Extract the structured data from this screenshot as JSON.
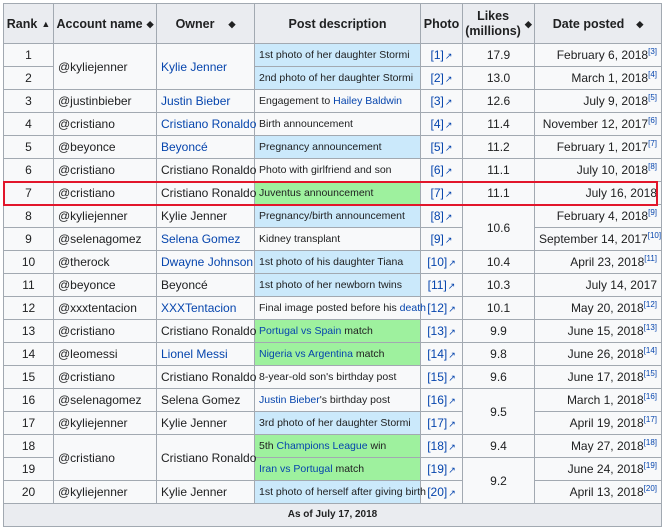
{
  "headers": [
    "Rank",
    "Account name",
    "Owner",
    "Post description",
    "Photo",
    "Likes (millions)",
    "Date posted"
  ],
  "header_likes_line1": "Likes",
  "header_likes_line2": "(millions)",
  "sort_icon": "up-down-triangles",
  "colors": {
    "blue_cell": "#cbe9fb",
    "green_cell": "#9ef19e",
    "highlight": "#e2162b",
    "link": "#0645ad"
  },
  "rows": [
    {
      "rank": "1",
      "account": "@kyliejenner",
      "owner": "Kylie Jenner",
      "owner_link": true,
      "desc_parts": [
        {
          "t": "1st photo of her daughter Stormi"
        }
      ],
      "desc_bg": "blue",
      "photo": "[1]",
      "likes": "17.9",
      "date": "February 6, 2018",
      "ref": "[3]"
    },
    {
      "rank": "2",
      "account": "",
      "owner": "",
      "desc_parts": [
        {
          "t": "2nd photo of her daughter Stormi"
        }
      ],
      "desc_bg": "blue",
      "photo": "[2]",
      "likes": "13.0",
      "date": "March 1, 2018",
      "ref": "[4]"
    },
    {
      "rank": "3",
      "account": "@justinbieber",
      "owner": "Justin Bieber",
      "owner_link": true,
      "desc_parts": [
        {
          "t": "Engagement to "
        },
        {
          "t": "Hailey Baldwin",
          "link": true
        }
      ],
      "desc_bg": "",
      "photo": "[3]",
      "likes": "12.6",
      "date": "July 9, 2018",
      "ref": "[5]"
    },
    {
      "rank": "4",
      "account": "@cristiano",
      "owner": "Cristiano Ronaldo",
      "owner_link": true,
      "desc_parts": [
        {
          "t": "Birth announcement"
        }
      ],
      "desc_bg": "",
      "photo": "[4]",
      "likes": "11.4",
      "date": "November 12, 2017",
      "ref": "[6]"
    },
    {
      "rank": "5",
      "account": "@beyonce",
      "owner": "Beyoncé",
      "owner_link": true,
      "desc_parts": [
        {
          "t": "Pregnancy announcement"
        }
      ],
      "desc_bg": "blue",
      "photo": "[5]",
      "likes": "11.2",
      "date": "February 1, 2017",
      "ref": "[7]"
    },
    {
      "rank": "6",
      "account": "@cristiano",
      "owner": "Cristiano Ronaldo",
      "owner_link": false,
      "desc_parts": [
        {
          "t": "Photo with girlfriend and son"
        }
      ],
      "desc_bg": "",
      "photo": "[6]",
      "likes": "11.1",
      "date": "July 10, 2018",
      "ref": "[8]"
    },
    {
      "rank": "7",
      "account": "@cristiano",
      "owner": "Cristiano Ronaldo",
      "owner_link": false,
      "desc_parts": [
        {
          "t": "Juventus announcement"
        }
      ],
      "desc_bg": "green",
      "photo": "[7]",
      "likes": "11.1",
      "date": "July 16, 2018",
      "ref": ""
    },
    {
      "rank": "8",
      "account": "@kyliejenner",
      "owner": "Kylie Jenner",
      "owner_link": false,
      "desc_parts": [
        {
          "t": "Pregnancy/birth announcement"
        }
      ],
      "desc_bg": "blue",
      "photo": "[8]",
      "likes": "10.6",
      "date": "February 4, 2018",
      "ref": "[9]"
    },
    {
      "rank": "9",
      "account": "@selenagomez",
      "owner": "Selena Gomez",
      "owner_link": true,
      "desc_parts": [
        {
          "t": "Kidney transplant"
        }
      ],
      "desc_bg": "",
      "photo": "[9]",
      "likes": "",
      "date": "September 14, 2017",
      "ref": "[10]"
    },
    {
      "rank": "10",
      "account": "@therock",
      "owner": "Dwayne Johnson",
      "owner_link": true,
      "desc_parts": [
        {
          "t": "1st photo of his daughter Tiana"
        }
      ],
      "desc_bg": "blue",
      "photo": "[10]",
      "likes": "10.4",
      "date": "April 23, 2018",
      "ref": "[11]"
    },
    {
      "rank": "11",
      "account": "@beyonce",
      "owner": "Beyoncé",
      "owner_link": false,
      "desc_parts": [
        {
          "t": "1st photo of her newborn twins"
        }
      ],
      "desc_bg": "blue",
      "photo": "[11]",
      "likes": "10.3",
      "date": "July 14, 2017",
      "ref": ""
    },
    {
      "rank": "12",
      "account": "@xxxtentacion",
      "owner": "XXXTentacion",
      "owner_link": true,
      "desc_parts": [
        {
          "t": "Final image posted before his "
        },
        {
          "t": "death",
          "link": true
        }
      ],
      "desc_bg": "",
      "photo": "[12]",
      "likes": "10.1",
      "date": "May 20, 2018",
      "ref": "[12]"
    },
    {
      "rank": "13",
      "account": "@cristiano",
      "owner": "Cristiano Ronaldo",
      "owner_link": false,
      "desc_parts": [
        {
          "t": "Portugal vs Spain",
          "link": true
        },
        {
          "t": " match"
        }
      ],
      "desc_bg": "green",
      "photo": "[13]",
      "likes": "9.9",
      "date": "June 15, 2018",
      "ref": "[13]"
    },
    {
      "rank": "14",
      "account": "@leomessi",
      "owner": "Lionel Messi",
      "owner_link": true,
      "desc_parts": [
        {
          "t": "Nigeria vs Argentina",
          "link": true
        },
        {
          "t": " match"
        }
      ],
      "desc_bg": "green",
      "photo": "[14]",
      "likes": "9.8",
      "date": "June 26, 2018",
      "ref": "[14]"
    },
    {
      "rank": "15",
      "account": "@cristiano",
      "owner": "Cristiano Ronaldo",
      "owner_link": false,
      "desc_parts": [
        {
          "t": "8-year-old son's birthday post"
        }
      ],
      "desc_bg": "",
      "photo": "[15]",
      "likes": "9.6",
      "date": "June 17, 2018",
      "ref": "[15]"
    },
    {
      "rank": "16",
      "account": "@selenagomez",
      "owner": "Selena Gomez",
      "owner_link": false,
      "desc_parts": [
        {
          "t": "Justin Bieber",
          "link": true
        },
        {
          "t": "'s birthday post"
        }
      ],
      "desc_bg": "",
      "photo": "[16]",
      "likes": "9.5",
      "date": "March 1, 2018",
      "ref": "[16]"
    },
    {
      "rank": "17",
      "account": "@kyliejenner",
      "owner": "Kylie Jenner",
      "owner_link": false,
      "desc_parts": [
        {
          "t": "3rd photo of her daughter Stormi"
        }
      ],
      "desc_bg": "blue",
      "photo": "[17]",
      "likes": "",
      "date": "April 19, 2018",
      "ref": "[17]"
    },
    {
      "rank": "18",
      "account": "@cristiano",
      "owner": "Cristiano Ronaldo",
      "owner_link": false,
      "desc_parts": [
        {
          "t": "5th "
        },
        {
          "t": "Champions League",
          "link": true
        },
        {
          "t": " win"
        }
      ],
      "desc_bg": "green",
      "photo": "[18]",
      "likes": "9.4",
      "date": "May 27, 2018",
      "ref": "[18]"
    },
    {
      "rank": "19",
      "account": "",
      "owner": "",
      "desc_parts": [
        {
          "t": "Iran vs Portugal",
          "link": true
        },
        {
          "t": " match"
        }
      ],
      "desc_bg": "green",
      "photo": "[19]",
      "likes": "9.2",
      "date": "June 24, 2018",
      "ref": "[19]"
    },
    {
      "rank": "20",
      "account": "@kyliejenner",
      "owner": "Kylie Jenner",
      "owner_link": false,
      "desc_parts": [
        {
          "t": "1st photo of herself after giving birth"
        }
      ],
      "desc_bg": "blue",
      "photo": "[20]",
      "likes": "",
      "date": "April 13, 2018",
      "ref": "[20]"
    }
  ],
  "footer": "As of July 17, 2018",
  "highlighted_rank": "7"
}
